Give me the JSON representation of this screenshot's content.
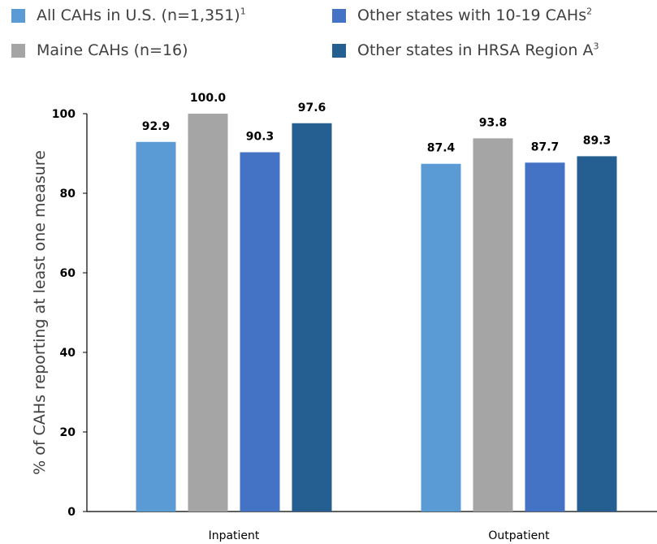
{
  "chart_data": {
    "type": "bar",
    "categories": [
      "Inpatient",
      "Outpatient"
    ],
    "series": [
      {
        "name": "All CAHs in U.S. (n=1,351)",
        "sup": "1",
        "color": "#5b9bd5",
        "values": [
          92.9,
          87.4
        ]
      },
      {
        "name": "Maine CAHs (n=16)",
        "sup": "",
        "color": "#a5a5a5",
        "values": [
          100.0,
          93.8
        ]
      },
      {
        "name": "Other states with 10-19 CAHs",
        "sup": "2",
        "color": "#4472c4",
        "values": [
          90.3,
          87.7
        ]
      },
      {
        "name": "Other states in HRSA Region A",
        "sup": "3",
        "color": "#255e91",
        "values": [
          97.6,
          89.3
        ]
      }
    ],
    "value_labels": [
      [
        "92.9",
        "87.4"
      ],
      [
        "100.0",
        "93.8"
      ],
      [
        "90.3",
        "87.7"
      ],
      [
        "97.6",
        "89.3"
      ]
    ],
    "ylabel": "% of CAHs reporting at least one measure",
    "xlabel": "",
    "ylim": [
      0,
      100
    ],
    "yticks": [
      "0",
      "20",
      "40",
      "60",
      "80",
      "100"
    ],
    "grid": false,
    "legend_position": "top"
  }
}
